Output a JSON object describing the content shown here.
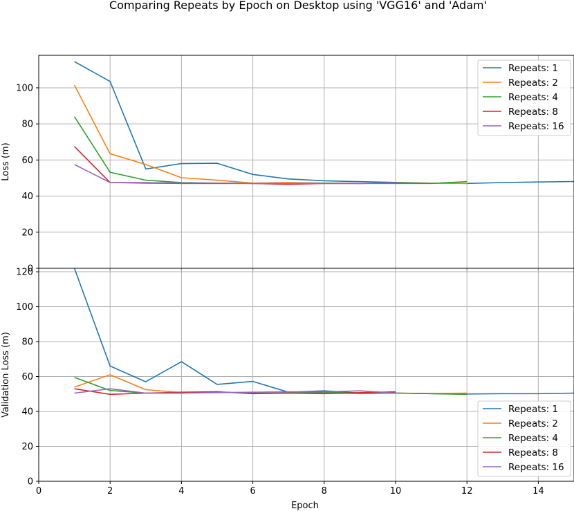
{
  "chart_data": [
    {
      "type": "line",
      "title": "Comparing Repeats by Epoch on Desktop using 'VGG16' and 'Adam'",
      "xlabel": "",
      "ylabel": "Loss (m)",
      "xlim": [
        0,
        15
      ],
      "ylim": [
        0,
        118
      ],
      "xticks": [
        0,
        2,
        4,
        6,
        8,
        10,
        12,
        14
      ],
      "yticks": [
        0,
        20,
        40,
        60,
        80,
        100
      ],
      "grid": true,
      "legend": "top-right",
      "series": [
        {
          "name": "Repeats: 1",
          "color": "#1f77b4",
          "x": [
            1,
            2,
            3,
            4,
            5,
            6,
            7,
            8,
            9,
            10,
            11,
            12,
            13,
            14,
            15
          ],
          "y": [
            114.5,
            103.5,
            55,
            58,
            58.2,
            52,
            49.5,
            48.5,
            48,
            47.6,
            47.2,
            47,
            47.5,
            47.8,
            48.1
          ]
        },
        {
          "name": "Repeats: 2",
          "color": "#ff7f0e",
          "x": [
            1,
            2,
            3,
            4,
            5,
            6,
            7,
            8,
            9,
            10,
            11,
            12
          ],
          "y": [
            101.5,
            63.5,
            57.5,
            50.2,
            48.8,
            47.2,
            47.5,
            47.2,
            47,
            47.2,
            47.2,
            47
          ]
        },
        {
          "name": "Repeats: 4",
          "color": "#2ca02c",
          "x": [
            1,
            2,
            3,
            4,
            5,
            6,
            7,
            8,
            9,
            10,
            11,
            12
          ],
          "y": [
            84,
            53.2,
            48.8,
            47.5,
            47.2,
            47,
            47,
            47.2,
            47,
            47,
            47,
            48
          ]
        },
        {
          "name": "Repeats: 8",
          "color": "#d62728",
          "x": [
            1,
            2,
            3,
            4,
            5,
            6,
            7,
            8,
            9,
            10
          ],
          "y": [
            67.5,
            47.5,
            47.2,
            47,
            47,
            47,
            46.5,
            47,
            47,
            47.3
          ]
        },
        {
          "name": "Repeats: 16",
          "color": "#9467bd",
          "x": [
            1,
            2,
            3,
            4,
            5,
            6,
            7,
            8,
            9,
            10
          ],
          "y": [
            57.5,
            47.5,
            47.5,
            47.2,
            47.2,
            47,
            47,
            47,
            47,
            47.2
          ]
        }
      ]
    },
    {
      "type": "line",
      "xlabel": "Epoch",
      "ylabel": "Validation Loss (m)",
      "xlim": [
        0,
        15
      ],
      "ylim": [
        0,
        122
      ],
      "xticks": [
        0,
        2,
        4,
        6,
        8,
        10,
        12,
        14
      ],
      "yticks": [
        0,
        20,
        40,
        60,
        80,
        100,
        120
      ],
      "grid": true,
      "legend": "bottom-right",
      "series": [
        {
          "name": "Repeats: 1",
          "color": "#1f77b4",
          "x": [
            1,
            2,
            3,
            4,
            5,
            6,
            7,
            8,
            9,
            10,
            11,
            12,
            13,
            14,
            15
          ],
          "y": [
            122,
            66,
            57,
            68.5,
            55.5,
            57.2,
            51,
            51.8,
            50.5,
            50.5,
            50.2,
            50,
            50.2,
            50.2,
            50.5
          ]
        },
        {
          "name": "Repeats: 2",
          "color": "#ff7f0e",
          "x": [
            1,
            2,
            3,
            4,
            5,
            6,
            7,
            8,
            9,
            10,
            11,
            12
          ],
          "y": [
            54,
            61,
            52.5,
            50.8,
            51,
            50.5,
            50.5,
            50.5,
            50.2,
            50.5,
            50.3,
            50.5
          ]
        },
        {
          "name": "Repeats: 4",
          "color": "#2ca02c",
          "x": [
            1,
            2,
            3,
            4,
            5,
            6,
            7,
            8,
            9,
            10,
            11,
            12
          ],
          "y": [
            59.5,
            52,
            50.5,
            50.5,
            51,
            50.5,
            50.5,
            51,
            50.5,
            50.5,
            50.2,
            49.8
          ]
        },
        {
          "name": "Repeats: 8",
          "color": "#d62728",
          "x": [
            1,
            2,
            3,
            4,
            5,
            6,
            7,
            8,
            9,
            10
          ],
          "y": [
            53,
            49.8,
            50.5,
            51,
            51.3,
            50.2,
            50.5,
            50.2,
            50.8,
            51.2
          ]
        },
        {
          "name": "Repeats: 16",
          "color": "#9467bd",
          "x": [
            1,
            2,
            3,
            4,
            5,
            6,
            7,
            8,
            9,
            10
          ],
          "y": [
            50.5,
            53,
            50.5,
            50.5,
            50.8,
            51,
            51.2,
            51.2,
            51.8,
            50.5
          ]
        }
      ]
    }
  ]
}
